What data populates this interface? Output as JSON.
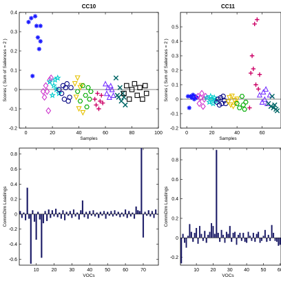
{
  "chart_data": [
    {
      "id": "cc10",
      "type": "scatter",
      "title": "CC10",
      "xlabel": "Samples",
      "ylabel": "Scores ( Sum of Saliences = 2 )",
      "xlim": [
        -5,
        100
      ],
      "ylim": [
        -0.2,
        0.4
      ],
      "xticks": [
        0,
        20,
        40,
        60,
        80,
        100
      ],
      "yticks": [
        -0.2,
        -0.1,
        0,
        0.1,
        0.2,
        0.3,
        0.4
      ],
      "xtick_labels": [
        "0",
        "20",
        "40",
        "60",
        "80",
        "100"
      ],
      "ytick_labels": [
        "-0.2",
        "-0.1",
        "0",
        "0.1",
        "0.2",
        "0.3",
        "0.4"
      ],
      "grid": false,
      "series": [
        {
          "marker": "asterisk",
          "color": "#1a1aff",
          "x": [
            2,
            4,
            5,
            7,
            8,
            9,
            10,
            11,
            11
          ],
          "y": [
            0.35,
            0.37,
            0.07,
            0.38,
            0.33,
            0.27,
            0.21,
            0.33,
            0.25
          ]
        },
        {
          "marker": "diamond",
          "color": "#cc33cc",
          "x": [
            13,
            14,
            15,
            16,
            17,
            18,
            19
          ],
          "y": [
            -0.01,
            -0.04,
            0.02,
            -0.01,
            -0.11,
            0.05,
            0.06
          ]
        },
        {
          "marker": "star",
          "color": "#00cccc",
          "x": [
            18,
            20,
            21,
            22,
            23,
            24,
            25
          ],
          "y": [
            0.04,
            -0.03,
            0.02,
            0.05,
            0.0,
            0.06,
            -0.02
          ]
        },
        {
          "marker": "circle",
          "color": "#000080",
          "x": [
            25,
            27,
            28,
            29,
            30,
            31,
            32,
            33,
            34
          ],
          "y": [
            0.0,
            -0.02,
            0.02,
            -0.05,
            0.01,
            0.03,
            -0.06,
            -0.04,
            0.01
          ]
        },
        {
          "marker": "triangle-down",
          "color": "#e6c000",
          "x": [
            37,
            38,
            39,
            40,
            41,
            42,
            43
          ],
          "y": [
            0.03,
            -0.04,
            0.06,
            -0.1,
            0.01,
            0.02,
            -0.12
          ]
        },
        {
          "marker": "hexagon",
          "color": "#00aa00",
          "x": [
            39,
            41,
            43,
            45,
            46,
            47,
            48,
            49
          ],
          "y": [
            -0.01,
            -0.06,
            0.02,
            -0.03,
            -0.09,
            0.01,
            -0.05,
            -0.01
          ]
        },
        {
          "marker": "plus",
          "color": "#cc0066",
          "x": [
            52,
            53,
            54,
            55,
            56,
            57,
            58
          ],
          "y": [
            -0.05,
            -0.08,
            -0.02,
            -0.1,
            -0.06,
            -0.03,
            -0.07
          ]
        },
        {
          "marker": "triangle-up",
          "color": "#7733ff",
          "x": [
            60,
            61,
            62,
            63,
            64,
            65,
            66
          ],
          "y": [
            0.03,
            -0.02,
            0.01,
            -0.04,
            0.02,
            0.0,
            -0.03
          ]
        },
        {
          "marker": "x",
          "color": "#006666",
          "x": [
            68,
            69,
            70,
            71,
            72,
            73,
            74,
            75
          ],
          "y": [
            0.06,
            -0.03,
            -0.04,
            0.01,
            -0.06,
            -0.02,
            -0.04,
            -0.08
          ]
        },
        {
          "marker": "square",
          "color": "#000000",
          "x": [
            74,
            76,
            78,
            80,
            82,
            84,
            86,
            88,
            90,
            91
          ],
          "y": [
            -0.02,
            0.02,
            -0.05,
            0.0,
            0.03,
            -0.03,
            0.01,
            -0.05,
            0.02,
            -0.02
          ]
        }
      ]
    },
    {
      "id": "cc11",
      "type": "scatter",
      "title": "CC11",
      "xlabel": "Samples",
      "ylabel": "Scores ( Sum of Saliences = 2 )",
      "xlim": [
        -5,
        75
      ],
      "ylim": [
        -0.2,
        0.6
      ],
      "xticks": [
        0,
        20,
        40,
        60
      ],
      "yticks": [
        -0.2,
        -0.1,
        0,
        0.1,
        0.2,
        0.3,
        0.4,
        0.5
      ],
      "xtick_labels": [
        "0",
        "20",
        "40",
        "60"
      ],
      "ytick_labels": [
        "-0.2",
        "-0.1",
        "0",
        "0.1",
        "0.2",
        "0.3",
        "0.4",
        "0.5"
      ],
      "grid": false,
      "series": [
        {
          "marker": "asterisk",
          "color": "#1a1aff",
          "x": [
            1,
            2,
            3,
            4,
            5,
            6,
            7,
            8
          ],
          "y": [
            0.02,
            -0.06,
            0.02,
            0.01,
            0.03,
            0.0,
            0.02,
            0.01
          ]
        },
        {
          "marker": "diamond",
          "color": "#cc33cc",
          "x": [
            9,
            10,
            11,
            12,
            13,
            14,
            15
          ],
          "y": [
            0.02,
            -0.03,
            0.01,
            0.04,
            -0.05,
            0.0,
            0.02
          ]
        },
        {
          "marker": "star",
          "color": "#00cccc",
          "x": [
            16,
            18,
            19,
            20,
            21,
            22,
            23
          ],
          "y": [
            0.01,
            -0.02,
            0.02,
            0.0,
            -0.03,
            0.01,
            -0.01
          ]
        },
        {
          "marker": "circle",
          "color": "#000080",
          "x": [
            24,
            25,
            26,
            27,
            28,
            29,
            30,
            31
          ],
          "y": [
            -0.02,
            0.0,
            -0.04,
            0.01,
            -0.03,
            0.02,
            -0.01,
            -0.03
          ]
        },
        {
          "marker": "triangle-down",
          "color": "#e6c000",
          "x": [
            33,
            34,
            35,
            36,
            37,
            38,
            39,
            40
          ],
          "y": [
            -0.02,
            0.01,
            -0.04,
            0.02,
            -0.05,
            -0.01,
            -0.03,
            0.0
          ]
        },
        {
          "marker": "hexagon",
          "color": "#00aa00",
          "x": [
            40,
            42,
            44,
            45,
            46,
            47
          ],
          "y": [
            -0.03,
            -0.06,
            0.02,
            -0.04,
            -0.07,
            -0.02
          ]
        },
        {
          "marker": "plus",
          "color": "#cc0066",
          "x": [
            50,
            51,
            52,
            53,
            54,
            55,
            56,
            57,
            58
          ],
          "y": [
            -0.06,
            0.18,
            0.3,
            0.21,
            0.52,
            0.1,
            0.55,
            0.07,
            0.17
          ]
        },
        {
          "marker": "triangle-up",
          "color": "#7733ff",
          "x": [
            58,
            60,
            61,
            62,
            63,
            64,
            66
          ],
          "y": [
            0.03,
            -0.02,
            0.05,
            0.0,
            0.07,
            -0.03,
            0.03
          ]
        },
        {
          "marker": "x",
          "color": "#006666",
          "x": [
            65,
            67,
            68,
            69,
            70,
            71,
            72
          ],
          "y": [
            -0.03,
            -0.05,
            0.02,
            -0.06,
            -0.04,
            -0.07,
            -0.08
          ]
        }
      ]
    },
    {
      "id": "cc10-loadings",
      "type": "bar",
      "title": "",
      "xlabel": "VOCs",
      "ylabel": "CommDim Loadings",
      "xlim": [
        0.5,
        78.5
      ],
      "ylim": [
        -0.68,
        0.88
      ],
      "xticks": [
        10,
        20,
        30,
        40,
        50,
        60,
        70
      ],
      "yticks": [
        -0.6,
        -0.4,
        -0.2,
        0,
        0.2,
        0.4,
        0.6,
        0.8
      ],
      "xtick_labels": [
        "10",
        "20",
        "30",
        "40",
        "50",
        "60",
        "70"
      ],
      "ytick_labels": [
        "-0.6",
        "-0.4",
        "-0.2",
        "0",
        "0.2",
        "0.4",
        "0.6",
        "0.8"
      ],
      "color": "#1a1a66",
      "x": [
        1,
        2,
        3,
        4,
        5,
        6,
        7,
        8,
        9,
        10,
        11,
        12,
        13,
        14,
        15,
        16,
        17,
        18,
        19,
        20,
        21,
        22,
        23,
        24,
        25,
        26,
        27,
        28,
        29,
        30,
        31,
        32,
        33,
        34,
        35,
        36,
        37,
        38,
        39,
        40,
        41,
        42,
        43,
        44,
        45,
        46,
        47,
        48,
        49,
        50,
        51,
        52,
        53,
        54,
        55,
        56,
        57,
        58,
        59,
        60,
        61,
        62,
        63,
        64,
        65,
        66,
        67,
        68,
        69,
        70,
        71,
        72,
        73,
        74,
        75,
        76,
        77,
        78
      ],
      "values": [
        0.04,
        -0.05,
        0.02,
        -0.08,
        0.35,
        -0.06,
        -0.66,
        0.05,
        -0.1,
        -0.34,
        0.03,
        -0.07,
        -0.58,
        -0.12,
        0.04,
        -0.09,
        0.06,
        -0.05,
        0.05,
        -0.03,
        0.07,
        -0.04,
        0.02,
        -0.06,
        0.05,
        -0.08,
        0.03,
        -0.02,
        0.04,
        -0.05,
        0.06,
        -0.03,
        0.02,
        -0.07,
        0.05,
        0.18,
        -0.04,
        0.03,
        -0.06,
        0.04,
        -0.02,
        0.05,
        -0.03,
        0.02,
        -0.05,
        0.03,
        -0.02,
        0.04,
        -0.06,
        0.03,
        -0.02,
        0.04,
        -0.03,
        0.05,
        -0.02,
        0.03,
        -0.04,
        0.02,
        -0.03,
        0.06,
        -0.05,
        0.04,
        -0.03,
        0.02,
        -0.06,
        0.1,
        0.05,
        0.04,
        0.88,
        -0.31,
        0.03,
        -0.02,
        0.05,
        -0.03,
        0.04,
        -0.05,
        0.06,
        0.0
      ]
    },
    {
      "id": "cc11-loadings",
      "type": "bar",
      "title": "",
      "xlabel": "VOCs",
      "ylabel": "CommDim Loadings",
      "xlim": [
        0.5,
        60.5
      ],
      "ylim": [
        -0.28,
        0.92
      ],
      "xticks": [
        10,
        20,
        30,
        40,
        50,
        60
      ],
      "yticks": [
        -0.2,
        0,
        0.2,
        0.4,
        0.6,
        0.8
      ],
      "xtick_labels": [
        "10",
        "20",
        "30",
        "40",
        "50",
        "60"
      ],
      "ytick_labels": [
        "-0.2",
        "0",
        "0.2",
        "0.4",
        "0.6",
        "0.8"
      ],
      "color": "#1a1a66",
      "x": [
        1,
        2,
        3,
        4,
        5,
        6,
        7,
        8,
        9,
        10,
        11,
        12,
        13,
        14,
        15,
        16,
        17,
        18,
        19,
        20,
        21,
        22,
        23,
        24,
        25,
        26,
        27,
        28,
        29,
        30,
        31,
        32,
        33,
        34,
        35,
        36,
        37,
        38,
        39,
        40,
        41,
        42,
        43,
        44,
        45,
        46,
        47,
        48,
        49,
        50,
        51,
        52,
        53,
        54,
        55,
        56,
        57,
        58,
        59,
        60
      ],
      "values": [
        -0.26,
        0.04,
        -0.05,
        -0.1,
        0.02,
        0.14,
        0.06,
        -0.04,
        0.05,
        0.1,
        -0.06,
        0.12,
        0.04,
        -0.03,
        0.07,
        -0.05,
        0.03,
        0.06,
        0.15,
        0.12,
        0.04,
        0.9,
        0.05,
        -0.04,
        0.08,
        0.03,
        -0.05,
        0.06,
        0.04,
        0.12,
        -0.04,
        0.05,
        0.06,
        -0.07,
        0.03,
        0.05,
        -0.03,
        0.05,
        -0.04,
        -0.05,
        0.06,
        0.02,
        -0.03,
        0.05,
        -0.04,
        0.04,
        0.06,
        -0.05,
        -0.03,
        0.02,
        0.08,
        -0.04,
        0.03,
        -0.03,
        0.13,
        0.05,
        -0.03,
        -0.04,
        -0.08,
        -0.07
      ]
    }
  ]
}
